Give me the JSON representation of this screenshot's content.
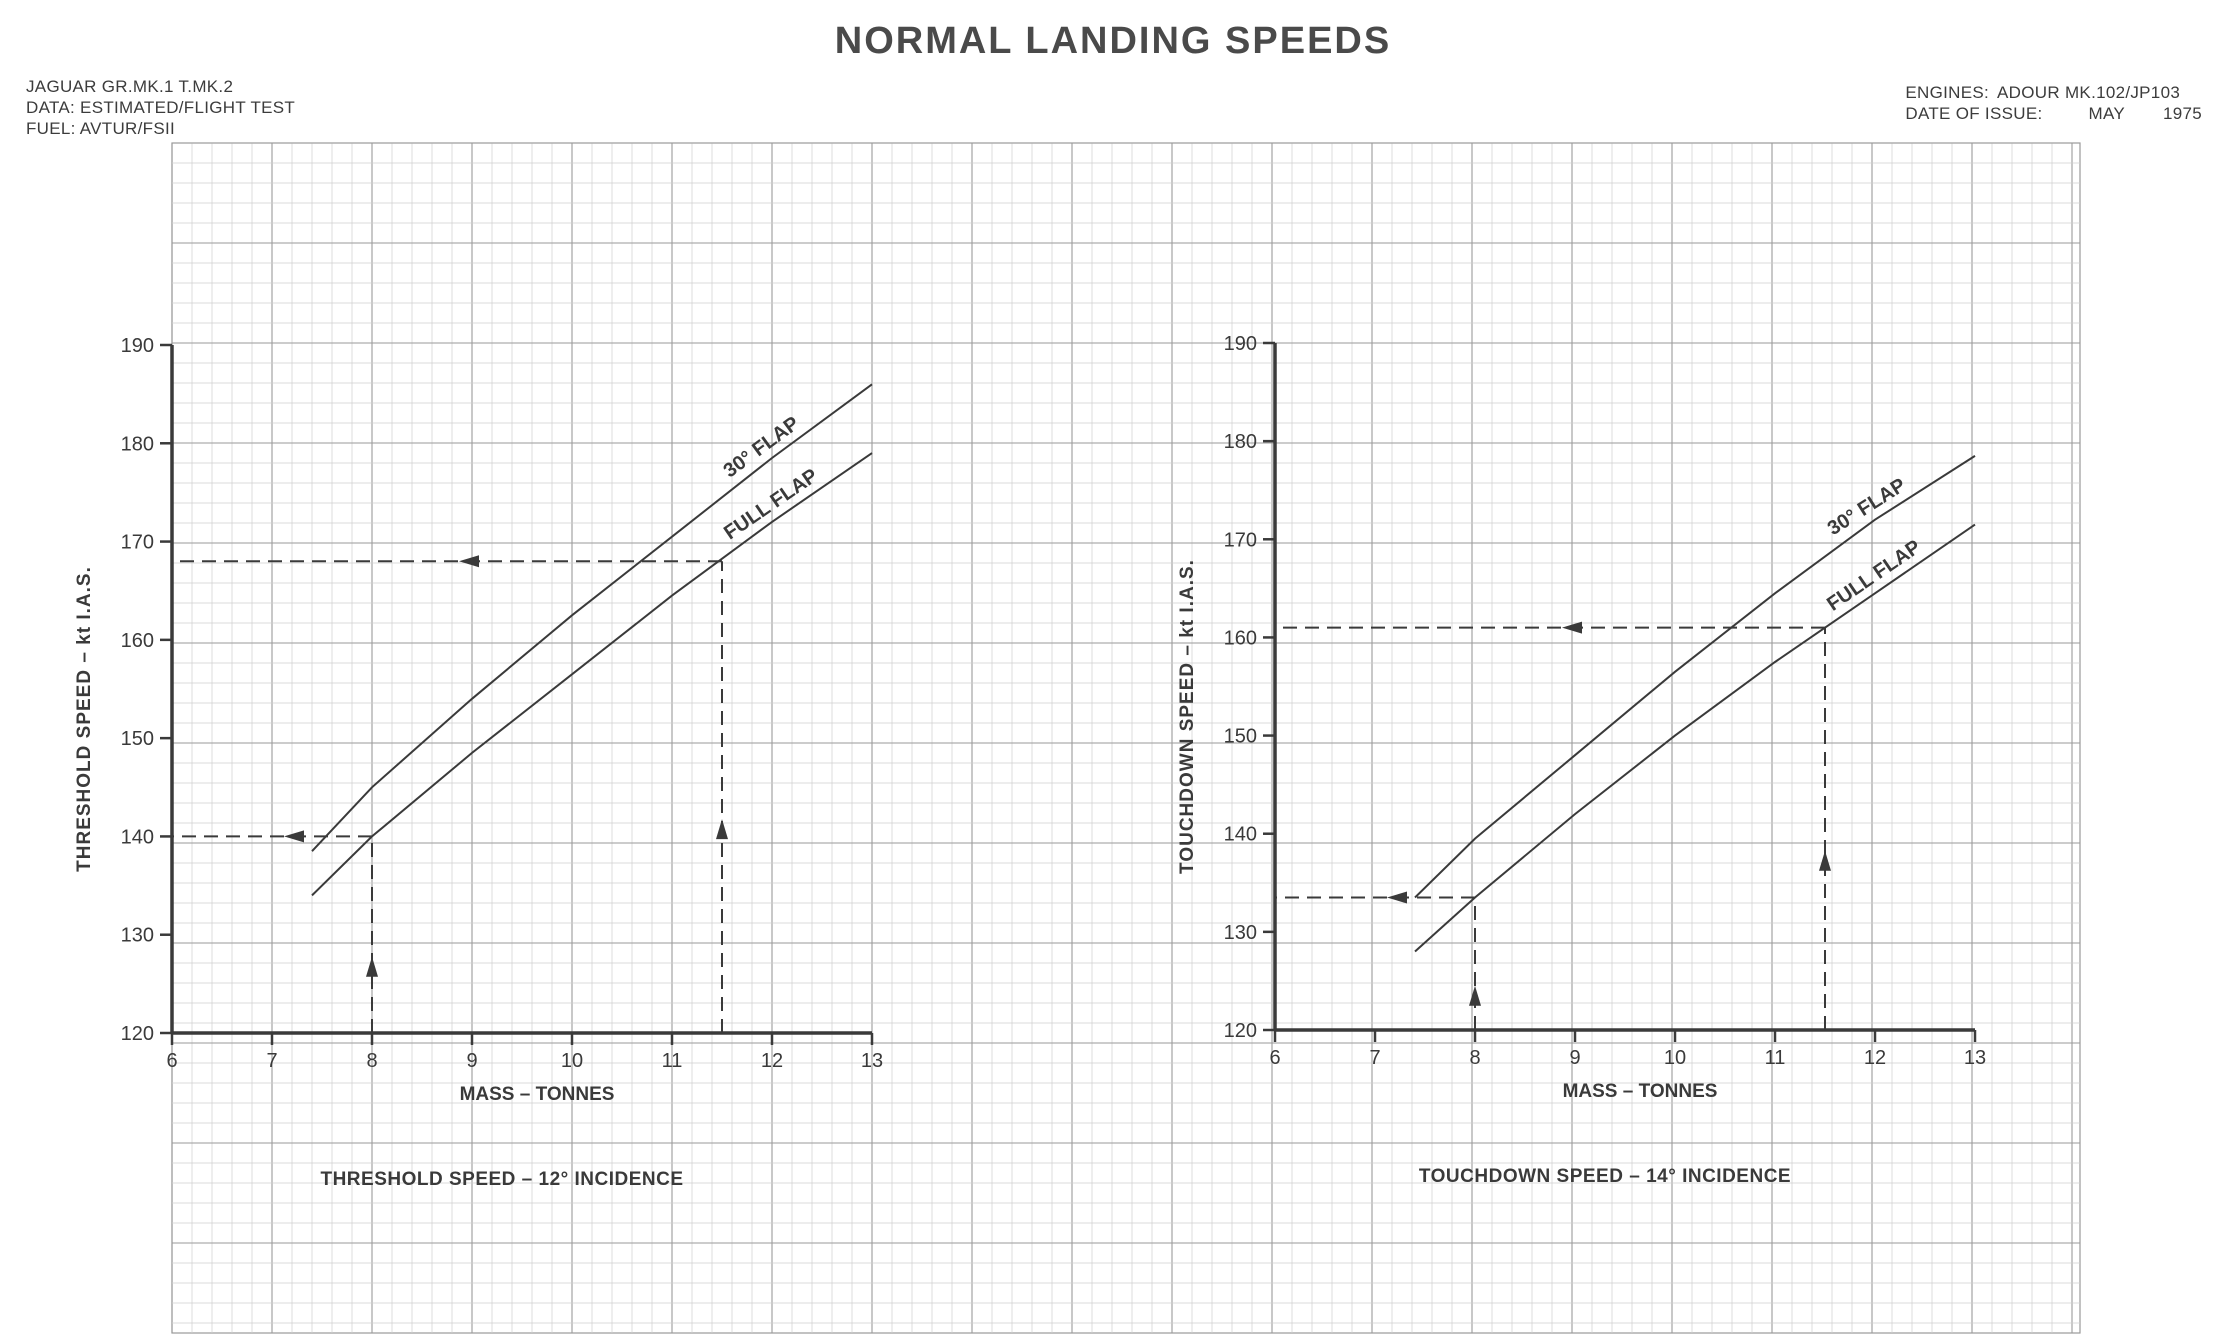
{
  "title": "NORMAL LANDING SPEEDS",
  "header_left": {
    "aircraft": "JAGUAR GR.MK.1 T.MK.2",
    "data": "DATA: ESTIMATED/FLIGHT TEST",
    "fuel": "FUEL: AVTUR/FSII"
  },
  "header_right": {
    "engines_label": "ENGINES:",
    "engines_value": "ADOUR MK.102/JP103",
    "issue_label": "DATE OF ISSUE:",
    "issue_month": "MAY",
    "issue_year": "1975"
  },
  "colors": {
    "ink": "#3a3a3a",
    "grid_minor": "#cfcfcf",
    "grid_major": "#9a9a9a",
    "paper": "#ffffff"
  },
  "chart_data": [
    {
      "type": "line",
      "title": "THRESHOLD SPEED – 12° INCIDENCE",
      "xlabel": "MASS – TONNES",
      "ylabel": "THRESHOLD SPEED – kt I.A.S.",
      "xlim": [
        6,
        13
      ],
      "ylim": [
        120,
        190
      ],
      "xticks": [
        6,
        7,
        8,
        9,
        10,
        11,
        12,
        13
      ],
      "yticks": [
        120,
        130,
        140,
        150,
        160,
        170,
        180,
        190
      ],
      "grid": true,
      "series": [
        {
          "name": "30° FLAP",
          "x": [
            7.4,
            8.0,
            9.0,
            10.0,
            11.0,
            12.0,
            13.0
          ],
          "y": [
            138.5,
            145.0,
            154.0,
            162.5,
            170.5,
            178.5,
            186.0
          ]
        },
        {
          "name": "FULL FLAP",
          "x": [
            7.4,
            8.0,
            9.0,
            10.0,
            11.0,
            12.0,
            13.0
          ],
          "y": [
            134.0,
            140.0,
            148.5,
            156.5,
            164.5,
            172.0,
            179.0
          ]
        }
      ],
      "guides": [
        {
          "x": 8.0,
          "y": 140.0
        },
        {
          "x": 11.5,
          "y": 168.0
        }
      ]
    },
    {
      "type": "line",
      "title": "TOUCHDOWN SPEED – 14° INCIDENCE",
      "xlabel": "MASS – TONNES",
      "ylabel": "TOUCHDOWN SPEED – kt I.A.S.",
      "xlim": [
        6,
        13
      ],
      "ylim": [
        120,
        190
      ],
      "xticks": [
        6,
        7,
        8,
        9,
        10,
        11,
        12,
        13
      ],
      "yticks": [
        120,
        130,
        140,
        150,
        160,
        170,
        180,
        190
      ],
      "grid": true,
      "series": [
        {
          "name": "30° FLAP",
          "x": [
            7.4,
            8.0,
            9.0,
            10.0,
            11.0,
            12.0,
            13.0
          ],
          "y": [
            133.5,
            139.5,
            148.0,
            156.5,
            164.5,
            172.0,
            178.5
          ]
        },
        {
          "name": "FULL FLAP",
          "x": [
            7.4,
            8.0,
            9.0,
            10.0,
            11.0,
            12.0,
            13.0
          ],
          "y": [
            128.0,
            133.5,
            142.0,
            150.0,
            157.5,
            164.5,
            171.5
          ]
        }
      ],
      "guides": [
        {
          "x": 8.0,
          "y": 133.5
        },
        {
          "x": 11.5,
          "y": 161.0
        }
      ]
    }
  ]
}
